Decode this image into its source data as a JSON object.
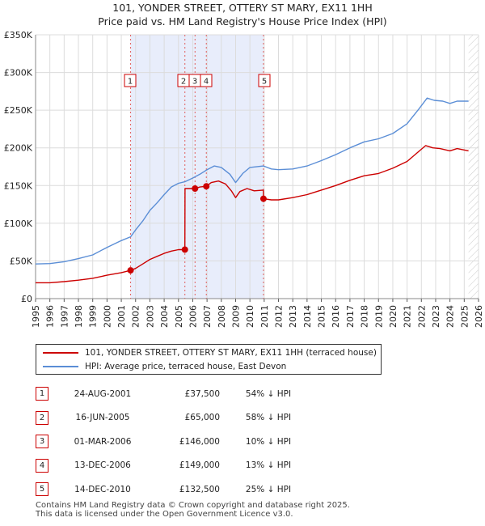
{
  "title": {
    "line1": "101, YONDER STREET, OTTERY ST MARY, EX11 1HH",
    "line2": "Price paid vs. HM Land Registry's House Price Index (HPI)"
  },
  "chart_data": {
    "type": "line",
    "x_range": [
      1995,
      2026
    ],
    "y_range": [
      0,
      350000
    ],
    "y_ticks": [
      {
        "value": 0,
        "label": "£0"
      },
      {
        "value": 50000,
        "label": "£50K"
      },
      {
        "value": 100000,
        "label": "£100K"
      },
      {
        "value": 150000,
        "label": "£150K"
      },
      {
        "value": 200000,
        "label": "£200K"
      },
      {
        "value": 250000,
        "label": "£250K"
      },
      {
        "value": 300000,
        "label": "£300K"
      },
      {
        "value": 350000,
        "label": "£350K"
      }
    ],
    "x_ticks": [
      1995,
      1996,
      1997,
      1998,
      1999,
      2000,
      2001,
      2002,
      2003,
      2004,
      2005,
      2006,
      2007,
      2008,
      2009,
      2010,
      2011,
      2012,
      2013,
      2014,
      2015,
      2016,
      2017,
      2018,
      2019,
      2020,
      2021,
      2022,
      2023,
      2024,
      2025,
      2026
    ],
    "shaded_spans": [
      [
        2001.65,
        2010.95
      ]
    ],
    "data_end": 2025.3,
    "series": [
      {
        "name": "101, YONDER STREET, OTTERY ST MARY, EX11 1HH (terraced house)",
        "color": "#cc0000",
        "points": [
          [
            1995.0,
            21000
          ],
          [
            1996.0,
            21000
          ],
          [
            1997.0,
            22500
          ],
          [
            1998.0,
            24500
          ],
          [
            1999.0,
            27000
          ],
          [
            2000.0,
            31000
          ],
          [
            2001.0,
            34500
          ],
          [
            2001.65,
            37500
          ],
          [
            2002.0,
            40000
          ],
          [
            2002.5,
            46000
          ],
          [
            2003.0,
            52000
          ],
          [
            2003.5,
            56000
          ],
          [
            2004.0,
            60000
          ],
          [
            2004.5,
            63000
          ],
          [
            2005.0,
            65000
          ],
          [
            2005.45,
            65000
          ],
          [
            2005.46,
            146000
          ],
          [
            2006.16,
            146000
          ],
          [
            2006.5,
            148000
          ],
          [
            2006.95,
            149000
          ],
          [
            2007.3,
            154000
          ],
          [
            2007.8,
            156000
          ],
          [
            2008.3,
            152000
          ],
          [
            2008.7,
            143000
          ],
          [
            2009.0,
            134000
          ],
          [
            2009.3,
            142000
          ],
          [
            2009.8,
            146000
          ],
          [
            2010.3,
            143000
          ],
          [
            2010.94,
            144000
          ],
          [
            2010.95,
            132500
          ],
          [
            2011.5,
            131000
          ],
          [
            2012.0,
            131000
          ],
          [
            2013.0,
            134000
          ],
          [
            2014.0,
            138000
          ],
          [
            2015.0,
            144000
          ],
          [
            2016.0,
            150000
          ],
          [
            2017.0,
            157000
          ],
          [
            2018.0,
            163000
          ],
          [
            2019.0,
            166000
          ],
          [
            2020.0,
            173000
          ],
          [
            2021.0,
            182000
          ],
          [
            2021.8,
            195000
          ],
          [
            2022.3,
            203000
          ],
          [
            2022.8,
            200000
          ],
          [
            2023.3,
            199000
          ],
          [
            2024.0,
            196000
          ],
          [
            2024.5,
            199000
          ],
          [
            2025.3,
            196000
          ]
        ]
      },
      {
        "name": "HPI: Average price, terraced house, East Devon",
        "color": "#5b8ed6",
        "points": [
          [
            1995.0,
            46000
          ],
          [
            1996.0,
            46500
          ],
          [
            1997.0,
            49000
          ],
          [
            1998.0,
            53000
          ],
          [
            1999.0,
            58000
          ],
          [
            2000.0,
            68000
          ],
          [
            2001.0,
            77000
          ],
          [
            2001.65,
            82000
          ],
          [
            2002.0,
            91000
          ],
          [
            2002.5,
            103000
          ],
          [
            2003.0,
            117000
          ],
          [
            2003.5,
            127000
          ],
          [
            2004.0,
            138000
          ],
          [
            2004.5,
            148000
          ],
          [
            2005.0,
            153000
          ],
          [
            2005.45,
            155000
          ],
          [
            2006.0,
            160000
          ],
          [
            2006.5,
            165000
          ],
          [
            2007.0,
            171000
          ],
          [
            2007.5,
            176000
          ],
          [
            2008.0,
            174000
          ],
          [
            2008.6,
            165000
          ],
          [
            2009.0,
            154000
          ],
          [
            2009.5,
            166000
          ],
          [
            2010.0,
            174000
          ],
          [
            2010.95,
            176000
          ],
          [
            2011.5,
            172000
          ],
          [
            2012.0,
            171000
          ],
          [
            2013.0,
            172000
          ],
          [
            2014.0,
            176000
          ],
          [
            2015.0,
            183000
          ],
          [
            2016.0,
            191000
          ],
          [
            2017.0,
            200000
          ],
          [
            2018.0,
            208000
          ],
          [
            2019.0,
            212000
          ],
          [
            2020.0,
            219000
          ],
          [
            2021.0,
            232000
          ],
          [
            2021.8,
            251000
          ],
          [
            2022.4,
            266000
          ],
          [
            2022.9,
            263000
          ],
          [
            2023.5,
            262000
          ],
          [
            2024.0,
            259000
          ],
          [
            2024.5,
            262000
          ],
          [
            2025.3,
            262000
          ]
        ]
      }
    ],
    "sales": [
      {
        "label": "1",
        "year": 2001.65,
        "value": 37500
      },
      {
        "label": "2",
        "year": 2005.45,
        "value": 65000
      },
      {
        "label": "3",
        "year": 2006.16,
        "value": 146000
      },
      {
        "label": "4",
        "year": 2006.95,
        "value": 149000
      },
      {
        "label": "5",
        "year": 2010.95,
        "value": 132500
      }
    ]
  },
  "legend": {
    "items": [
      {
        "label": "101, YONDER STREET, OTTERY ST MARY, EX11 1HH (terraced house)",
        "color": "#cc0000"
      },
      {
        "label": "HPI: Average price, terraced house, East Devon",
        "color": "#5b8ed6"
      }
    ]
  },
  "table": {
    "rows": [
      {
        "num": "1",
        "date": "24-AUG-2001",
        "price": "£37,500",
        "hpi": "54% ↓ HPI"
      },
      {
        "num": "2",
        "date": "16-JUN-2005",
        "price": "£65,000",
        "hpi": "58% ↓ HPI"
      },
      {
        "num": "3",
        "date": "01-MAR-2006",
        "price": "£146,000",
        "hpi": "10% ↓ HPI"
      },
      {
        "num": "4",
        "date": "13-DEC-2006",
        "price": "£149,000",
        "hpi": "13% ↓ HPI"
      },
      {
        "num": "5",
        "date": "14-DEC-2010",
        "price": "£132,500",
        "hpi": "25% ↓ HPI"
      }
    ]
  },
  "footer": {
    "line1": "Contains HM Land Registry data © Crown copyright and database right 2025.",
    "line2": "This data is licensed under the Open Government Licence v3.0."
  }
}
